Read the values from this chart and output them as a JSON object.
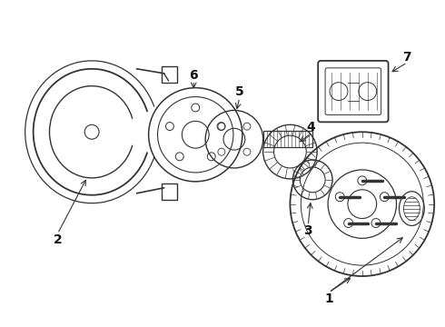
{
  "bg_color": "#ffffff",
  "line_color": "#333333",
  "label_color": "#111111",
  "figsize": [
    4.9,
    3.6
  ],
  "dpi": 100
}
